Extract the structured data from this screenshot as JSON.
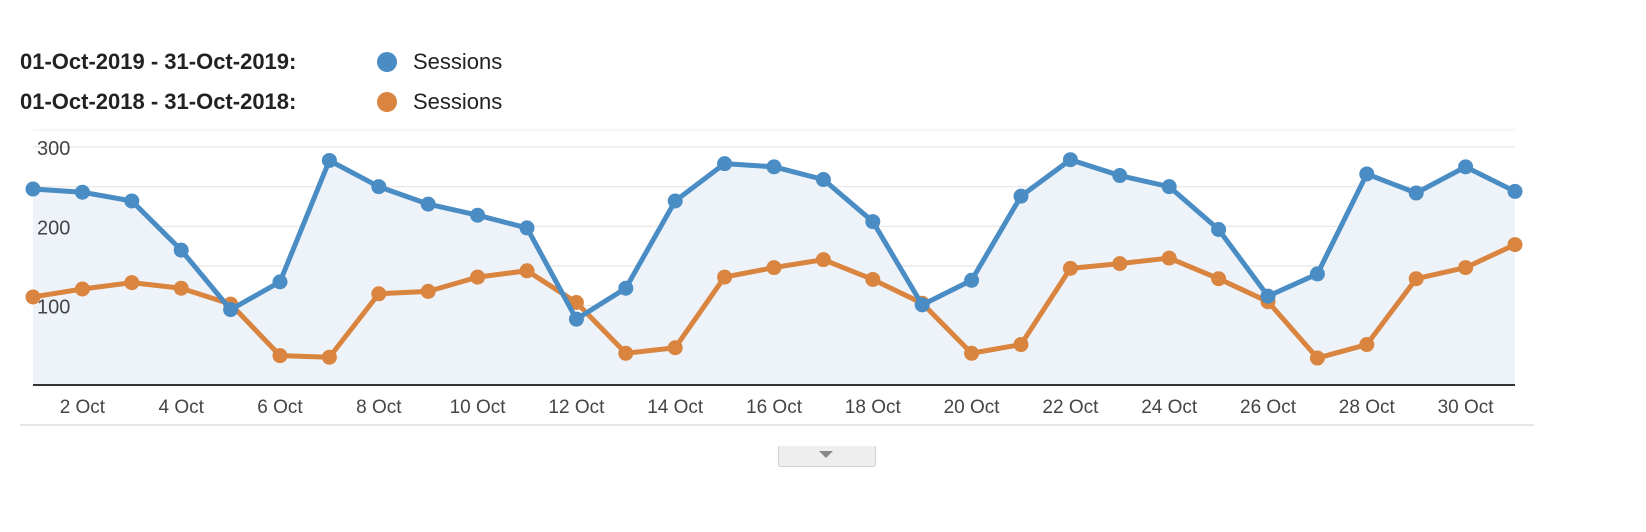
{
  "legend": [
    {
      "range": "01-Oct-2019 - 31-Oct-2019:",
      "name": "Sessions",
      "color": "#4a8cc4"
    },
    {
      "range": "01-Oct-2018 - 31-Oct-2018:",
      "name": "Sessions",
      "color": "#d9843f"
    }
  ],
  "colors": {
    "area_fill": "#eef3fa",
    "grid": "#e6e6e6",
    "axis": "#333333",
    "tick_text": "#444444"
  },
  "icons": {
    "collapse": "chevron-down-icon"
  },
  "chart_data": {
    "type": "line",
    "title": "",
    "xlabel": "",
    "ylabel": "",
    "ylim": [
      0,
      300
    ],
    "yticks": [
      100,
      200,
      300
    ],
    "x": [
      1,
      2,
      3,
      4,
      5,
      6,
      7,
      8,
      9,
      10,
      11,
      12,
      13,
      14,
      15,
      16,
      17,
      18,
      19,
      20,
      21,
      22,
      23,
      24,
      25,
      26,
      27,
      28,
      29,
      30,
      31
    ],
    "xtick_labels": [
      "2 Oct",
      "4 Oct",
      "6 Oct",
      "8 Oct",
      "10 Oct",
      "12 Oct",
      "14 Oct",
      "16 Oct",
      "18 Oct",
      "20 Oct",
      "22 Oct",
      "24 Oct",
      "26 Oct",
      "28 Oct",
      "30 Oct"
    ],
    "xtick_positions": [
      2,
      4,
      6,
      8,
      10,
      12,
      14,
      16,
      18,
      20,
      22,
      24,
      26,
      28,
      30
    ],
    "grid": true,
    "area_under_series": 0,
    "series": [
      {
        "name": "Sessions",
        "period": "01-Oct-2019 - 31-Oct-2019",
        "values": [
          247,
          243,
          232,
          170,
          95,
          130,
          283,
          250,
          228,
          214,
          198,
          83,
          122,
          232,
          279,
          275,
          259,
          206,
          101,
          132,
          238,
          284,
          264,
          250,
          196,
          112,
          140,
          266,
          242,
          275,
          244
        ]
      },
      {
        "name": "Sessions",
        "period": "01-Oct-2018 - 31-Oct-2018",
        "values": [
          111,
          121,
          129,
          122,
          102,
          37,
          35,
          115,
          118,
          136,
          144,
          104,
          40,
          47,
          136,
          148,
          158,
          133,
          103,
          40,
          51,
          147,
          153,
          160,
          134,
          105,
          34,
          51,
          134,
          148,
          177
        ]
      }
    ]
  }
}
